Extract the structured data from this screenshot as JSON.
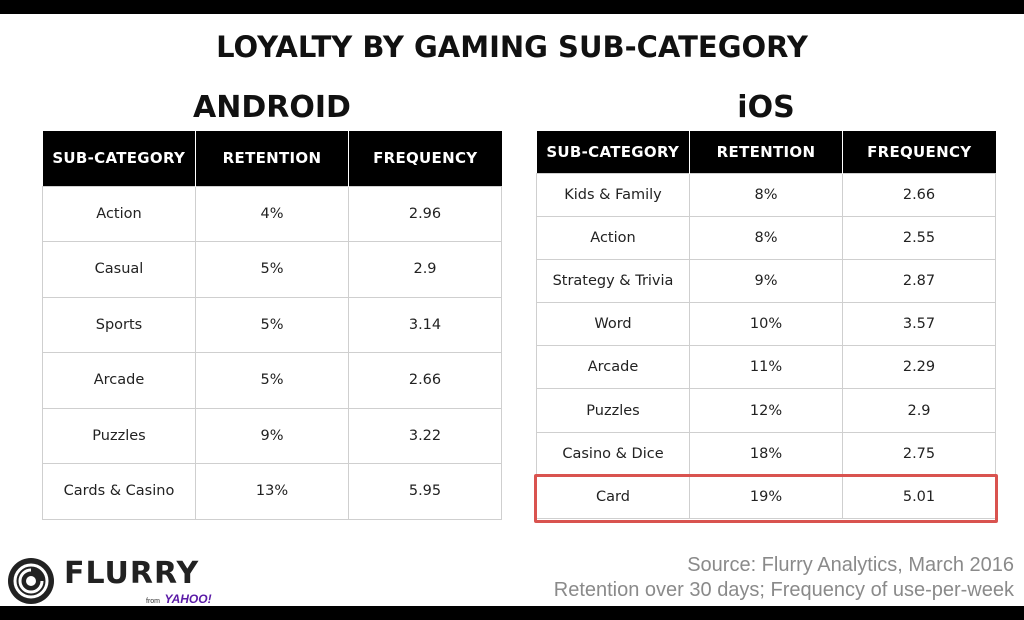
{
  "title": "LOYALTY BY GAMING SUB-CATEGORY",
  "android": {
    "title": "ANDROID",
    "headers": [
      "SUB-CATEGORY",
      "RETENTION",
      "FREQUENCY"
    ],
    "rows": [
      [
        "Action",
        "4%",
        "2.96"
      ],
      [
        "Casual",
        "5%",
        "2.9"
      ],
      [
        "Sports",
        "5%",
        "3.14"
      ],
      [
        "Arcade",
        "5%",
        "2.66"
      ],
      [
        "Puzzles",
        "9%",
        "3.22"
      ],
      [
        "Cards & Casino",
        "13%",
        "5.95"
      ]
    ]
  },
  "ios": {
    "title": "iOS",
    "headers": [
      "SUB-CATEGORY",
      "RETENTION",
      "FREQUENCY"
    ],
    "rows": [
      [
        "Kids & Family",
        "8%",
        "2.66"
      ],
      [
        "Action",
        "8%",
        "2.55"
      ],
      [
        "Strategy & Trivia",
        "9%",
        "2.87"
      ],
      [
        "Word",
        "10%",
        "3.57"
      ],
      [
        "Arcade",
        "11%",
        "2.29"
      ],
      [
        "Puzzles",
        "12%",
        "2.9"
      ],
      [
        "Casino & Dice",
        "18%",
        "2.75"
      ],
      [
        "Card",
        "19%",
        "5.01"
      ]
    ],
    "highlighted_row": "Card"
  },
  "logo": {
    "word": "FLURRY",
    "from": "from",
    "yahoo": "YAHOO!"
  },
  "source": {
    "line1": "Source: Flurry Analytics, March 2016",
    "line2": "Retention over 30 days; Frequency of use-per-week"
  },
  "colors": {
    "header_bg": "#000000",
    "highlight": "#d9534f",
    "yahoo_purple": "#5a1aa6",
    "source_text": "#8a8a8a"
  },
  "chart_data": [
    {
      "type": "table",
      "title": "ANDROID",
      "columns": [
        "SUB-CATEGORY",
        "RETENTION",
        "FREQUENCY"
      ],
      "categories": [
        "Action",
        "Casual",
        "Sports",
        "Arcade",
        "Puzzles",
        "Cards & Casino"
      ],
      "series": [
        {
          "name": "RETENTION",
          "values": [
            4,
            5,
            5,
            5,
            9,
            13
          ]
        },
        {
          "name": "FREQUENCY",
          "values": [
            2.96,
            2.9,
            3.14,
            2.66,
            3.22,
            5.95
          ]
        }
      ]
    },
    {
      "type": "table",
      "title": "iOS",
      "columns": [
        "SUB-CATEGORY",
        "RETENTION",
        "FREQUENCY"
      ],
      "categories": [
        "Kids & Family",
        "Action",
        "Strategy & Trivia",
        "Word",
        "Arcade",
        "Puzzles",
        "Casino & Dice",
        "Card"
      ],
      "series": [
        {
          "name": "RETENTION",
          "values": [
            8,
            8,
            9,
            10,
            11,
            12,
            18,
            19
          ]
        },
        {
          "name": "FREQUENCY",
          "values": [
            2.66,
            2.55,
            2.87,
            3.57,
            2.29,
            2.9,
            2.75,
            5.01
          ]
        }
      ]
    }
  ]
}
